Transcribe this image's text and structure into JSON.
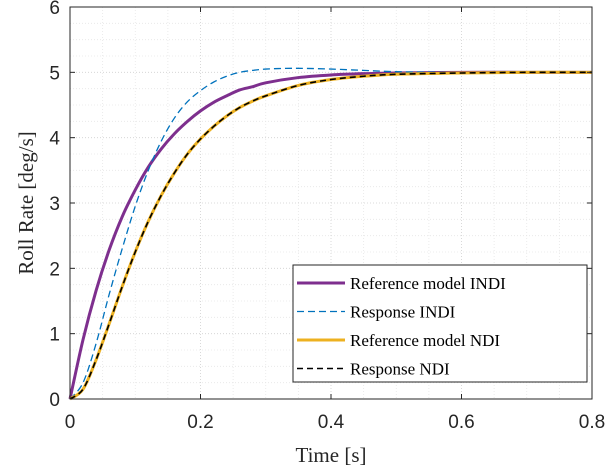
{
  "chart_data": {
    "type": "line",
    "title": "",
    "xlabel": "Time [s]",
    "ylabel": "Roll Rate [deg/s]",
    "xlim": [
      0,
      0.8
    ],
    "ylim": [
      0,
      6
    ],
    "xticks": [
      0,
      0.2,
      0.4,
      0.6,
      0.8
    ],
    "xtick_labels": [
      "0",
      "0.2",
      "0.4",
      "0.6",
      "0.8"
    ],
    "yticks": [
      0,
      1,
      2,
      3,
      4,
      5,
      6
    ],
    "ytick_labels": [
      "0",
      "1",
      "2",
      "3",
      "4",
      "5",
      "6"
    ],
    "grid": "major and minor, dotted",
    "legend_position": "bottom-right",
    "series": [
      {
        "name": "Reference model INDI",
        "color": "#7E2F8E",
        "style": "solid",
        "x": [
          0,
          0.02,
          0.04,
          0.06,
          0.08,
          0.1,
          0.12,
          0.14,
          0.16,
          0.18,
          0.2,
          0.22,
          0.24,
          0.26,
          0.28,
          0.3,
          0.35,
          0.4,
          0.45,
          0.5,
          0.6,
          0.7,
          0.8
        ],
        "values": [
          0,
          0.91,
          1.66,
          2.28,
          2.79,
          3.2,
          3.55,
          3.83,
          4.06,
          4.25,
          4.41,
          4.54,
          4.64,
          4.73,
          4.78,
          4.84,
          4.92,
          4.96,
          4.98,
          4.99,
          5.0,
          5.0,
          5.0
        ]
      },
      {
        "name": "Response INDI",
        "color": "#0072BD",
        "style": "dashed",
        "x": [
          0,
          0.02,
          0.04,
          0.06,
          0.08,
          0.1,
          0.12,
          0.14,
          0.16,
          0.18,
          0.2,
          0.22,
          0.24,
          0.26,
          0.28,
          0.3,
          0.33,
          0.36,
          0.4,
          0.45,
          0.5,
          0.6,
          0.8
        ],
        "values": [
          0,
          0.25,
          0.85,
          1.6,
          2.3,
          2.95,
          3.5,
          3.95,
          4.3,
          4.55,
          4.72,
          4.85,
          4.94,
          5.0,
          5.03,
          5.05,
          5.06,
          5.06,
          5.05,
          5.03,
          5.01,
          5.0,
          5.0
        ]
      },
      {
        "name": "Reference model NDI",
        "color": "#EDB120",
        "style": "solid",
        "x": [
          0,
          0.02,
          0.04,
          0.06,
          0.08,
          0.1,
          0.12,
          0.14,
          0.16,
          0.18,
          0.2,
          0.22,
          0.24,
          0.26,
          0.28,
          0.3,
          0.35,
          0.4,
          0.45,
          0.5,
          0.6,
          0.7,
          0.8
        ],
        "values": [
          0,
          0.15,
          0.6,
          1.15,
          1.72,
          2.25,
          2.72,
          3.12,
          3.46,
          3.75,
          3.98,
          4.17,
          4.33,
          4.46,
          4.56,
          4.64,
          4.8,
          4.89,
          4.94,
          4.97,
          4.99,
          5.0,
          5.0
        ]
      },
      {
        "name": "Response NDI",
        "color": "#000000",
        "style": "dashed",
        "x": [
          0,
          0.02,
          0.04,
          0.06,
          0.08,
          0.1,
          0.12,
          0.14,
          0.16,
          0.18,
          0.2,
          0.22,
          0.24,
          0.26,
          0.28,
          0.3,
          0.35,
          0.4,
          0.45,
          0.5,
          0.6,
          0.7,
          0.8
        ],
        "values": [
          0,
          0.15,
          0.6,
          1.15,
          1.72,
          2.25,
          2.72,
          3.12,
          3.46,
          3.75,
          3.98,
          4.17,
          4.33,
          4.46,
          4.56,
          4.64,
          4.8,
          4.89,
          4.94,
          4.97,
          4.99,
          5.0,
          5.0
        ]
      }
    ]
  }
}
